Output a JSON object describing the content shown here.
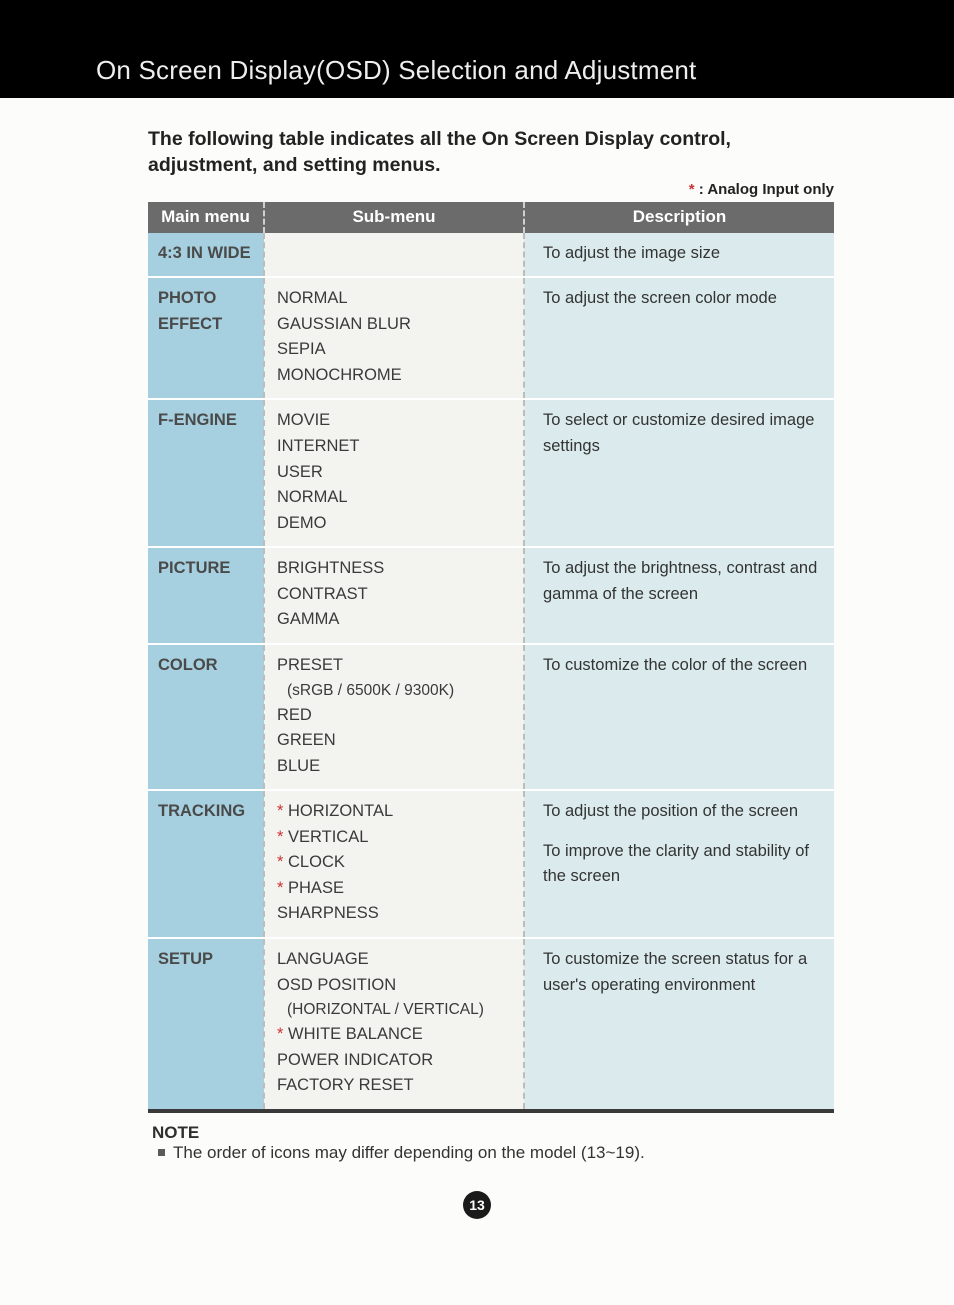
{
  "banner_title": "On Screen Display(OSD) Selection and Adjustment",
  "intro_text": "The following table indicates all the On Screen Display control, adjustment, and setting menus.",
  "legend": {
    "star": "*",
    "text": ": Analog Input only"
  },
  "headers": {
    "main": "Main menu",
    "sub": "Sub-menu",
    "desc": "Description"
  },
  "rows": [
    {
      "main": "4:3 IN WIDE",
      "sub": [],
      "desc": [
        "To adjust the image size"
      ]
    },
    {
      "main": "PHOTO EFFECT",
      "sub": [
        {
          "text": "NORMAL"
        },
        {
          "text": "GAUSSIAN BLUR"
        },
        {
          "text": "SEPIA"
        },
        {
          "text": "MONOCHROME"
        }
      ],
      "desc": [
        "To adjust the screen color mode"
      ]
    },
    {
      "main": "F-ENGINE",
      "sub": [
        {
          "text": "MOVIE"
        },
        {
          "text": "INTERNET"
        },
        {
          "text": "USER"
        },
        {
          "text": "NORMAL"
        },
        {
          "text": "DEMO"
        }
      ],
      "desc": [
        "To select or customize desired image settings"
      ]
    },
    {
      "main": "PICTURE",
      "sub": [
        {
          "text": "BRIGHTNESS"
        },
        {
          "text": "CONTRAST"
        },
        {
          "text": "GAMMA"
        }
      ],
      "desc": [
        "To adjust the brightness, contrast and gamma of the screen"
      ]
    },
    {
      "main": "COLOR",
      "sub": [
        {
          "text": "PRESET"
        },
        {
          "indent": "(sRGB / 6500K / 9300K)"
        },
        {
          "text": "RED"
        },
        {
          "text": "GREEN"
        },
        {
          "text": "BLUE"
        }
      ],
      "desc": [
        "To customize the color of the screen"
      ]
    },
    {
      "main": "TRACKING",
      "sub": [
        {
          "star": true,
          "text": "HORIZONTAL"
        },
        {
          "star": true,
          "text": "VERTICAL"
        },
        {
          "star": true,
          "text": "CLOCK"
        },
        {
          "star": true,
          "text": "PHASE"
        },
        {
          "text": "SHARPNESS"
        }
      ],
      "desc": [
        "To adjust the position of the screen",
        "To improve the clarity and stability of the screen"
      ]
    },
    {
      "main": "SETUP",
      "sub": [
        {
          "text": "LANGUAGE"
        },
        {
          "text": "OSD POSITION"
        },
        {
          "indent": "(HORIZONTAL / VERTICAL)"
        },
        {
          "star": true,
          "text": "WHITE BALANCE"
        },
        {
          "text": "POWER INDICATOR"
        },
        {
          "text": "FACTORY RESET"
        }
      ],
      "desc": [
        "To customize the screen status for a user's operating environment"
      ]
    }
  ],
  "note": {
    "label": "NOTE",
    "text": "The order of icons may differ depending on the model (13~19)."
  },
  "page_number": "13",
  "colors": {
    "banner_bg": "#000000",
    "header_bg": "#6b6b6b",
    "main_cell_bg": "#a6d0df",
    "sub_cell_bg": "#f3f3f0",
    "desc_cell_bg": "#dbebed",
    "star_color": "#c33"
  }
}
